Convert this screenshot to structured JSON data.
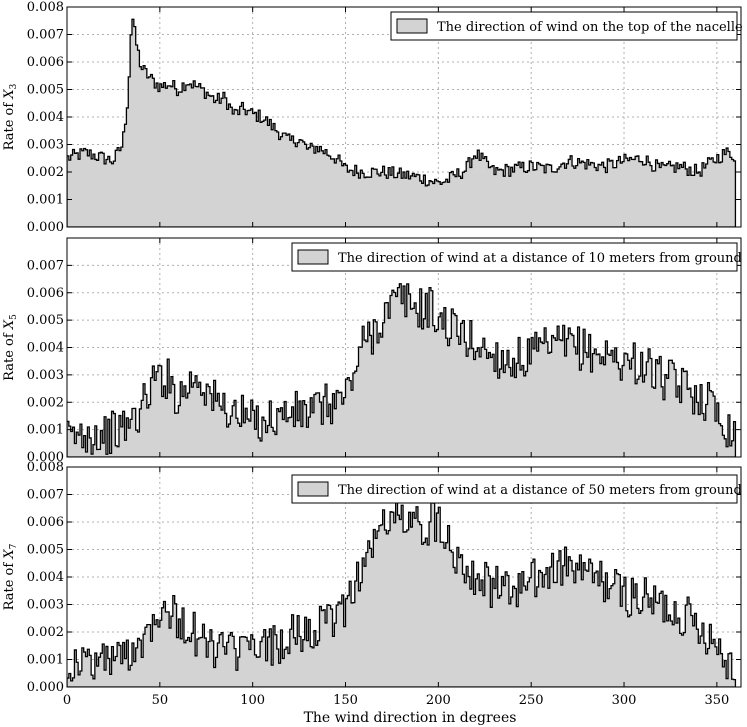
{
  "figure": {
    "xlabel": "The wind direction in degrees",
    "fill_color": "#d3d3d3",
    "line_color": "#000000"
  },
  "chart_data": [
    {
      "type": "area",
      "ylabel_prefix": "Rate of ",
      "ylabel_var": "X",
      "ylabel_sub": "3",
      "legend": "The direction of wind on the top of the nacelle",
      "legend_position": "upper right",
      "grid": true,
      "xlim": [
        0,
        363
      ],
      "ylim": [
        0,
        0.008
      ],
      "xticks": [],
      "yticks": [
        "0.000",
        "0.001",
        "0.002",
        "0.003",
        "0.004",
        "0.005",
        "0.006",
        "0.007",
        "0.008"
      ],
      "x": [
        0,
        10,
        20,
        25,
        30,
        33,
        35,
        37,
        40,
        45,
        50,
        55,
        60,
        65,
        70,
        75,
        80,
        85,
        90,
        95,
        100,
        105,
        110,
        115,
        120,
        125,
        130,
        135,
        140,
        145,
        150,
        160,
        170,
        180,
        190,
        195,
        200,
        205,
        210,
        215,
        220,
        230,
        240,
        250,
        260,
        270,
        280,
        290,
        300,
        310,
        320,
        330,
        340,
        350,
        355,
        360
      ],
      "values": [
        0.0025,
        0.0027,
        0.0025,
        0.0024,
        0.003,
        0.0048,
        0.0078,
        0.0068,
        0.0058,
        0.0054,
        0.0051,
        0.0052,
        0.005,
        0.0053,
        0.0051,
        0.0049,
        0.0046,
        0.0047,
        0.0041,
        0.0043,
        0.0041,
        0.004,
        0.0037,
        0.0034,
        0.0031,
        0.0032,
        0.0028,
        0.0029,
        0.0027,
        0.0025,
        0.0021,
        0.002,
        0.002,
        0.0019,
        0.0018,
        0.0017,
        0.0016,
        0.0017,
        0.0019,
        0.0021,
        0.0027,
        0.002,
        0.0021,
        0.0022,
        0.0021,
        0.0024,
        0.0023,
        0.0022,
        0.0024,
        0.0025,
        0.0021,
        0.0022,
        0.002,
        0.0025,
        0.0027,
        0.0026
      ]
    },
    {
      "type": "area",
      "ylabel_prefix": "Rate of ",
      "ylabel_var": "X",
      "ylabel_sub": "5",
      "legend": "The direction of wind at a distance of 10 meters from ground",
      "legend_position": "upper right",
      "grid": true,
      "xlim": [
        0,
        363
      ],
      "ylim": [
        0,
        0.008
      ],
      "xticks": [],
      "yticks": [
        "0.000",
        "0.001",
        "0.002",
        "0.003",
        "0.004",
        "0.005",
        "0.006",
        "0.007",
        ""
      ],
      "x": [
        0,
        10,
        20,
        30,
        40,
        45,
        50,
        55,
        60,
        65,
        70,
        75,
        80,
        90,
        100,
        110,
        120,
        130,
        140,
        150,
        155,
        160,
        165,
        170,
        175,
        180,
        185,
        190,
        195,
        200,
        210,
        220,
        230,
        240,
        250,
        260,
        270,
        280,
        290,
        300,
        310,
        320,
        330,
        340,
        350,
        355,
        360
      ],
      "values": [
        0.0006,
        0.0009,
        0.0008,
        0.001,
        0.0017,
        0.0026,
        0.003,
        0.0028,
        0.0022,
        0.0026,
        0.003,
        0.0025,
        0.002,
        0.0016,
        0.0013,
        0.0014,
        0.0016,
        0.0016,
        0.0019,
        0.0022,
        0.0032,
        0.0042,
        0.0046,
        0.0051,
        0.0055,
        0.0058,
        0.0056,
        0.0054,
        0.0055,
        0.005,
        0.0046,
        0.0041,
        0.0037,
        0.0035,
        0.0037,
        0.004,
        0.0041,
        0.0039,
        0.0037,
        0.0035,
        0.0034,
        0.0029,
        0.0026,
        0.0023,
        0.0018,
        0.0012,
        0.0008
      ]
    },
    {
      "type": "area",
      "ylabel_prefix": "Rate of ",
      "ylabel_var": "X",
      "ylabel_sub": "7",
      "legend": "The direction of wind at a distance of 50 meters from ground",
      "legend_position": "upper right",
      "grid": true,
      "xlim": [
        0,
        363
      ],
      "ylim": [
        0,
        0.008
      ],
      "xticks": [
        "0",
        "50",
        "100",
        "150",
        "200",
        "250",
        "300",
        "350"
      ],
      "xtick_values": [
        0,
        50,
        100,
        150,
        200,
        250,
        300,
        350
      ],
      "yticks": [
        "0.000",
        "0.001",
        "0.002",
        "0.003",
        "0.004",
        "0.005",
        "0.006",
        "0.007",
        "0.008"
      ],
      "x": [
        0,
        10,
        20,
        30,
        40,
        45,
        50,
        55,
        60,
        65,
        70,
        80,
        90,
        100,
        110,
        120,
        130,
        140,
        150,
        155,
        160,
        165,
        170,
        175,
        180,
        185,
        190,
        195,
        200,
        205,
        210,
        220,
        230,
        240,
        250,
        260,
        270,
        280,
        290,
        300,
        310,
        320,
        330,
        340,
        350,
        355,
        360
      ],
      "values": [
        0.0008,
        0.0009,
        0.001,
        0.0011,
        0.0017,
        0.0023,
        0.003,
        0.0028,
        0.0024,
        0.0022,
        0.0018,
        0.0014,
        0.0013,
        0.0013,
        0.0015,
        0.0018,
        0.002,
        0.0022,
        0.003,
        0.0038,
        0.0045,
        0.0052,
        0.0058,
        0.0064,
        0.0061,
        0.0058,
        0.006,
        0.0058,
        0.0062,
        0.0055,
        0.0048,
        0.0041,
        0.0036,
        0.0035,
        0.0038,
        0.0042,
        0.0044,
        0.0041,
        0.0038,
        0.0034,
        0.0032,
        0.003,
        0.0027,
        0.0023,
        0.0016,
        0.0011,
        0.0007
      ]
    }
  ]
}
